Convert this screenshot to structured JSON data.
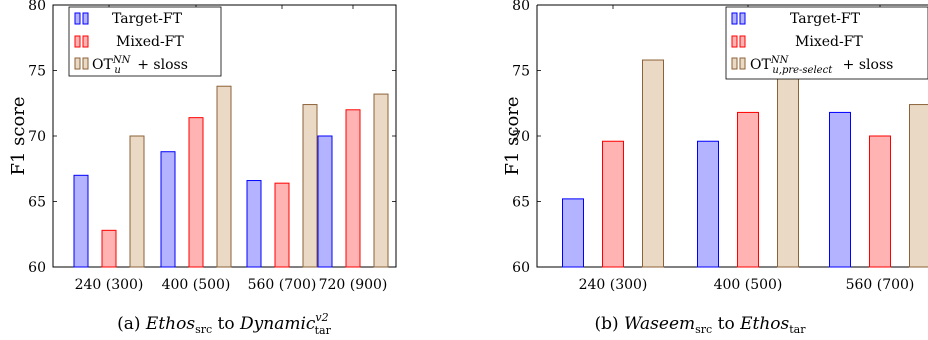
{
  "colors": {
    "target_fill": "#b3b3ff",
    "target_stroke": "#0000ff",
    "mixed_fill": "#ffb3b3",
    "mixed_stroke": "#ff0000",
    "ot_fill": "#ead9c4",
    "ot_stroke": "#8c6239"
  },
  "chart_data": [
    {
      "type": "bar",
      "ylabel": "F1 score",
      "ylim": [
        60,
        80
      ],
      "yticks": [
        60,
        65,
        70,
        75,
        80
      ],
      "categories": [
        "240 (300)",
        "400 (500)",
        "560 (700)",
        "720 (900)"
      ],
      "series": [
        {
          "name": "Target-FT",
          "values": [
            67.0,
            68.8,
            66.6,
            70.0
          ]
        },
        {
          "name": "Mixed-FT",
          "values": [
            62.8,
            71.4,
            66.4,
            72.0
          ]
        },
        {
          "name": "OT_u^NN + sloss",
          "values": [
            70.0,
            73.8,
            72.4,
            73.2
          ]
        }
      ],
      "legend_position": "top-left",
      "caption": {
        "prefix": "(a) ",
        "src": "Ethos",
        "src_sub": "src",
        "mid": " to ",
        "tar": "Dynamic",
        "tar_sup": "v2",
        "tar_sub": "tar"
      }
    },
    {
      "type": "bar",
      "ylabel": "F1 score",
      "ylim": [
        60,
        80
      ],
      "yticks": [
        60,
        65,
        70,
        75,
        80
      ],
      "categories": [
        "240 (300)",
        "400 (500)",
        "560 (700)"
      ],
      "series": [
        {
          "name": "Target-FT",
          "values": [
            65.2,
            69.6,
            71.8
          ]
        },
        {
          "name": "Mixed-FT",
          "values": [
            69.6,
            71.8,
            70.0
          ]
        },
        {
          "name": "OT_u,pre-select^NN + sloss",
          "values": [
            75.8,
            74.6,
            72.4
          ]
        }
      ],
      "legend_position": "top-right",
      "caption": {
        "prefix": "(b) ",
        "src": "Waseem",
        "src_sub": "src",
        "mid": " to ",
        "tar": "Ethos",
        "tar_sup": "",
        "tar_sub": "tar"
      }
    }
  ],
  "legend_text": {
    "ot_main": "OT",
    "ot_sup": "NN",
    "ot_sub_a": "u",
    "ot_sub_b": "u,pre-select",
    "ot_suffix": " + sloss"
  }
}
